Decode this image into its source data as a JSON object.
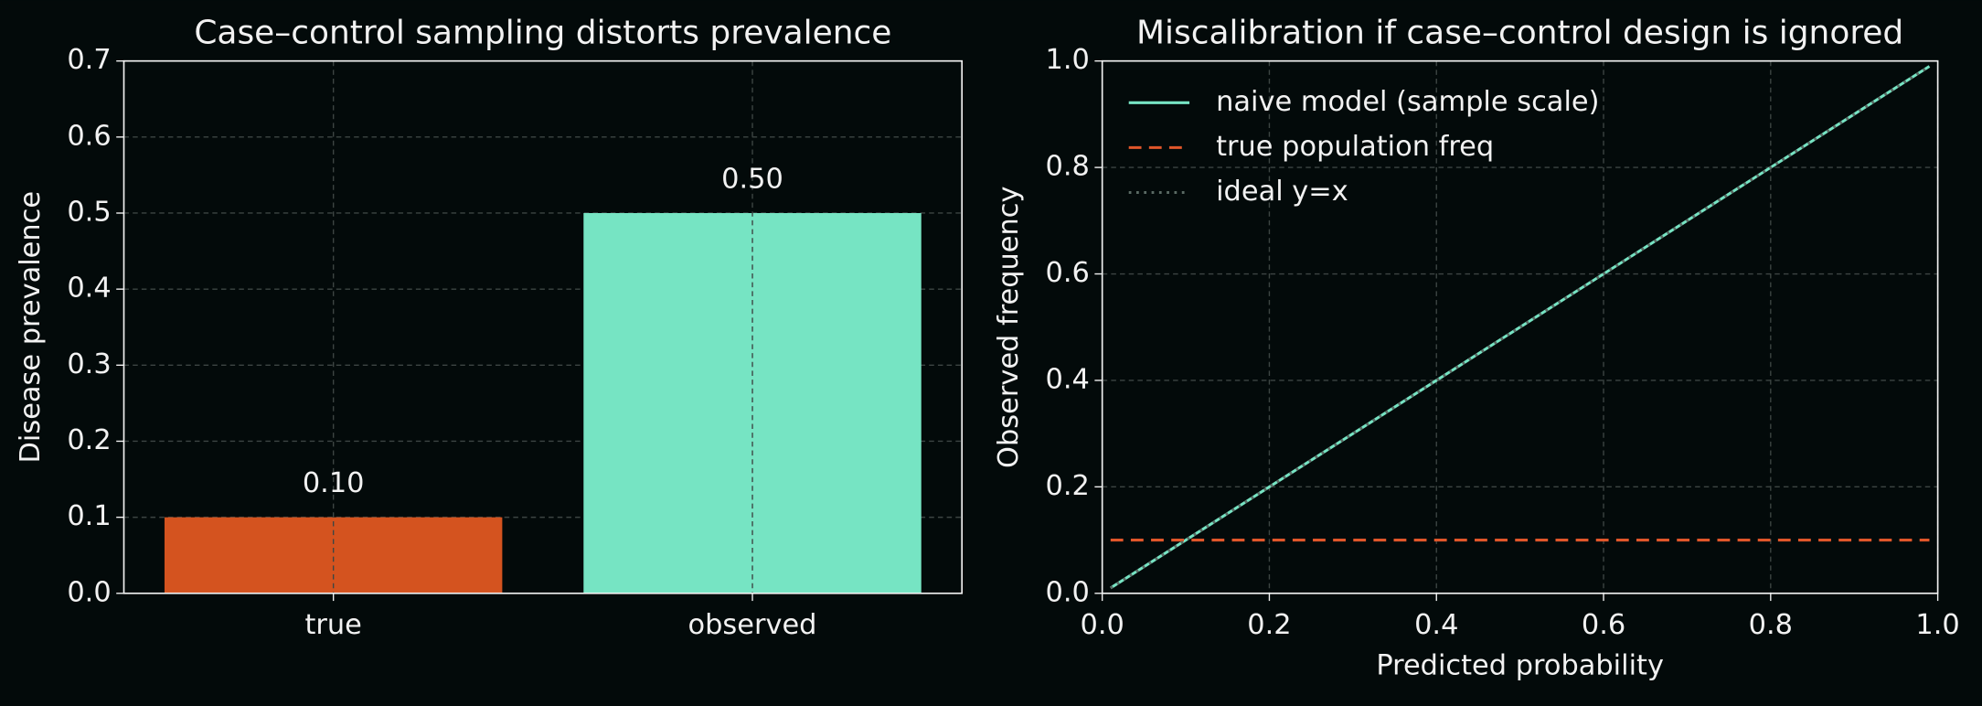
{
  "chart_data": [
    {
      "type": "bar",
      "title": "Case–control sampling distorts prevalence",
      "ylabel": "Disease prevalence",
      "categories": [
        "true",
        "observed"
      ],
      "values": [
        0.1,
        0.5
      ],
      "value_labels": [
        "0.10",
        "0.50"
      ],
      "colors": [
        "#d4531f",
        "#76e4c3"
      ],
      "ylim": [
        0,
        0.7
      ],
      "yticks": [
        {
          "value": 0,
          "label": "0.0"
        },
        0.1,
        0.2,
        0.3,
        0.4,
        0.5,
        0.6,
        0.7
      ],
      "grid": true
    },
    {
      "type": "line",
      "title": "Miscalibration if case–control design is ignored",
      "xlabel": "Predicted probability",
      "ylabel": "Observed frequency",
      "x": [
        0.01,
        0.99
      ],
      "series": [
        {
          "name": "naive model (sample scale)",
          "color": "#76e4c3",
          "linestyle": "solid",
          "values": [
            0.01,
            0.99
          ]
        },
        {
          "name": "true population freq",
          "color": "#e0562a",
          "linestyle": "dashed",
          "values": [
            0.1,
            0.1
          ]
        },
        {
          "name": "ideal y=x",
          "color": "#5a6a64",
          "linestyle": "dotted",
          "values": [
            0.01,
            0.99
          ]
        }
      ],
      "xlim": [
        0,
        1
      ],
      "ylim": [
        0,
        1
      ],
      "xticks": [
        {
          "value": 0,
          "label": "0.0"
        },
        0.2,
        0.4,
        0.6,
        0.8,
        {
          "value": 1,
          "label": "1.0"
        }
      ],
      "yticks": [
        {
          "value": 0,
          "label": "0.0"
        },
        0.2,
        0.4,
        0.6,
        0.8,
        {
          "value": 1,
          "label": "1.0"
        }
      ],
      "grid": true,
      "legend": "upper left"
    }
  ]
}
